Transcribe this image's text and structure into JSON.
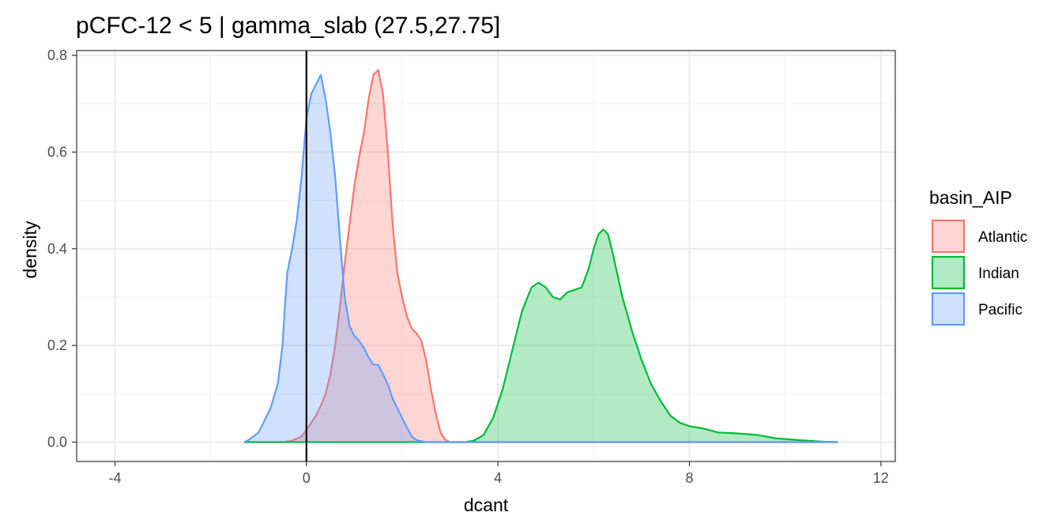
{
  "chart_data": {
    "type": "area",
    "title": "pCFC-12 < 5 | gamma_slab (27.5,27.75]",
    "xlabel": "dcant",
    "ylabel": "density",
    "xlim": [
      -4.8,
      12.3
    ],
    "ylim": [
      -0.04,
      0.81
    ],
    "x_ticks": [
      -4,
      0,
      4,
      8,
      12
    ],
    "x_tick_labels": [
      "-4",
      "0",
      "4",
      "8",
      "12"
    ],
    "y_ticks": [
      0.0,
      0.2,
      0.4,
      0.6,
      0.8
    ],
    "y_tick_labels": [
      "0.0",
      "0.2",
      "0.4",
      "0.6",
      "0.8"
    ],
    "grid": true,
    "vline_x": 0,
    "legend": {
      "title": "basin_AIP",
      "position": "right"
    },
    "series": [
      {
        "name": "Atlantic",
        "color": "#F8766D",
        "fill": "#F8766D",
        "points": [
          [
            -1.3,
            0.0
          ],
          [
            -0.5,
            0.0
          ],
          [
            -0.3,
            0.003
          ],
          [
            -0.1,
            0.012
          ],
          [
            0.0,
            0.025
          ],
          [
            0.1,
            0.04
          ],
          [
            0.2,
            0.055
          ],
          [
            0.3,
            0.075
          ],
          [
            0.4,
            0.1
          ],
          [
            0.5,
            0.14
          ],
          [
            0.6,
            0.2
          ],
          [
            0.7,
            0.28
          ],
          [
            0.8,
            0.37
          ],
          [
            0.9,
            0.45
          ],
          [
            1.0,
            0.53
          ],
          [
            1.1,
            0.59
          ],
          [
            1.2,
            0.64
          ],
          [
            1.3,
            0.71
          ],
          [
            1.4,
            0.76
          ],
          [
            1.5,
            0.77
          ],
          [
            1.6,
            0.72
          ],
          [
            1.7,
            0.6
          ],
          [
            1.8,
            0.45
          ],
          [
            1.9,
            0.35
          ],
          [
            2.0,
            0.3
          ],
          [
            2.1,
            0.26
          ],
          [
            2.2,
            0.235
          ],
          [
            2.3,
            0.225
          ],
          [
            2.4,
            0.21
          ],
          [
            2.5,
            0.17
          ],
          [
            2.6,
            0.11
          ],
          [
            2.7,
            0.06
          ],
          [
            2.8,
            0.02
          ],
          [
            2.9,
            0.005
          ],
          [
            3.0,
            0.0
          ],
          [
            11.1,
            0.0
          ]
        ]
      },
      {
        "name": "Indian",
        "color": "#00BA38",
        "fill": "#00BA38",
        "points": [
          [
            -1.3,
            0.0
          ],
          [
            3.3,
            0.0
          ],
          [
            3.5,
            0.003
          ],
          [
            3.7,
            0.015
          ],
          [
            3.9,
            0.05
          ],
          [
            4.1,
            0.11
          ],
          [
            4.3,
            0.19
          ],
          [
            4.5,
            0.27
          ],
          [
            4.7,
            0.32
          ],
          [
            4.85,
            0.33
          ],
          [
            5.0,
            0.32
          ],
          [
            5.15,
            0.3
          ],
          [
            5.3,
            0.295
          ],
          [
            5.45,
            0.31
          ],
          [
            5.6,
            0.315
          ],
          [
            5.75,
            0.32
          ],
          [
            5.9,
            0.36
          ],
          [
            6.0,
            0.4
          ],
          [
            6.1,
            0.43
          ],
          [
            6.2,
            0.44
          ],
          [
            6.3,
            0.43
          ],
          [
            6.4,
            0.39
          ],
          [
            6.6,
            0.3
          ],
          [
            6.8,
            0.23
          ],
          [
            7.0,
            0.17
          ],
          [
            7.2,
            0.12
          ],
          [
            7.4,
            0.085
          ],
          [
            7.6,
            0.055
          ],
          [
            7.8,
            0.04
          ],
          [
            8.0,
            0.033
          ],
          [
            8.3,
            0.028
          ],
          [
            8.6,
            0.02
          ],
          [
            9.0,
            0.018
          ],
          [
            9.4,
            0.015
          ],
          [
            9.8,
            0.008
          ],
          [
            10.3,
            0.004
          ],
          [
            10.8,
            0.001
          ],
          [
            11.1,
            0.0
          ]
        ]
      },
      {
        "name": "Pacific",
        "color": "#619CFF",
        "fill": "#619CFF",
        "points": [
          [
            -1.3,
            0.0
          ],
          [
            -1.2,
            0.005
          ],
          [
            -1.0,
            0.02
          ],
          [
            -0.9,
            0.04
          ],
          [
            -0.75,
            0.07
          ],
          [
            -0.6,
            0.12
          ],
          [
            -0.5,
            0.2
          ],
          [
            -0.45,
            0.28
          ],
          [
            -0.4,
            0.35
          ],
          [
            -0.3,
            0.4
          ],
          [
            -0.2,
            0.46
          ],
          [
            -0.1,
            0.55
          ],
          [
            0.0,
            0.67
          ],
          [
            0.1,
            0.72
          ],
          [
            0.2,
            0.74
          ],
          [
            0.3,
            0.76
          ],
          [
            0.4,
            0.71
          ],
          [
            0.5,
            0.64
          ],
          [
            0.6,
            0.55
          ],
          [
            0.7,
            0.42
          ],
          [
            0.8,
            0.3
          ],
          [
            0.9,
            0.24
          ],
          [
            1.0,
            0.22
          ],
          [
            1.1,
            0.21
          ],
          [
            1.2,
            0.195
          ],
          [
            1.3,
            0.175
          ],
          [
            1.4,
            0.16
          ],
          [
            1.5,
            0.16
          ],
          [
            1.6,
            0.14
          ],
          [
            1.7,
            0.12
          ],
          [
            1.8,
            0.09
          ],
          [
            1.9,
            0.07
          ],
          [
            2.0,
            0.05
          ],
          [
            2.1,
            0.03
          ],
          [
            2.2,
            0.012
          ],
          [
            2.3,
            0.004
          ],
          [
            2.5,
            0.0
          ],
          [
            11.1,
            0.0
          ]
        ]
      }
    ]
  }
}
